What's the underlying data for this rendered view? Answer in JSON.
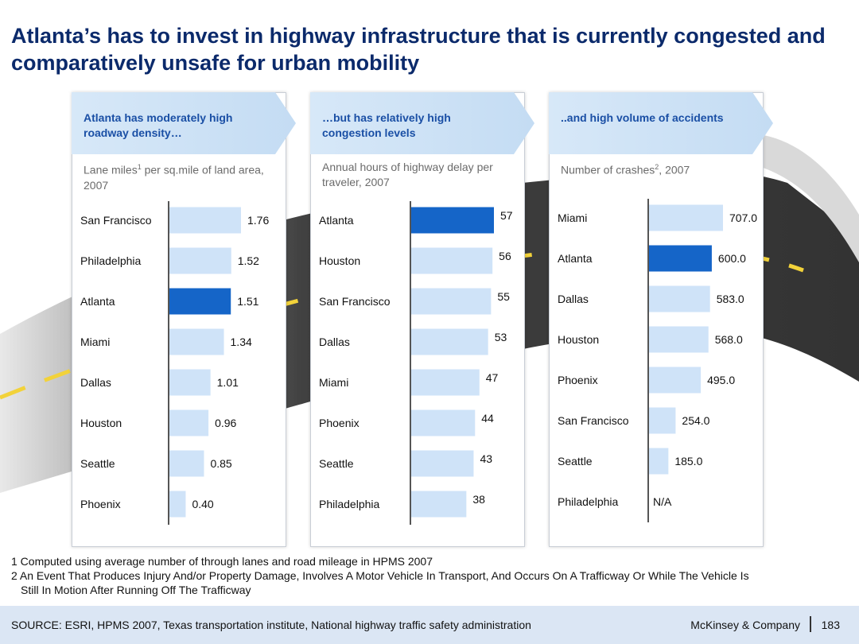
{
  "title": "Atlanta’s has to invest in highway infrastructure that is currently congested and comparatively unsafe for urban mobility",
  "colors": {
    "highlight": "#1565c8",
    "bar": "#cfe3f8",
    "axis": "#555555",
    "header": "#1a4fa5"
  },
  "panels": [
    {
      "header": "Atlanta has moderately high roadway density…",
      "subtitle_a": "Lane miles",
      "subtitle_sup": "1",
      "subtitle_b": " per sq.mile of land area, 2007"
    },
    {
      "header": "…but has relatively high congestion levels",
      "subtitle_a": "Annual hours of highway delay per traveler, 2007",
      "subtitle_sup": "",
      "subtitle_b": ""
    },
    {
      "header": "..and high volume of accidents",
      "subtitle_a": "Number of crashes",
      "subtitle_sup": "2",
      "subtitle_b": ", 2007"
    }
  ],
  "chart_data": [
    {
      "type": "bar",
      "orientation": "horizontal",
      "title": "Lane miles per sq.mile of land area, 2007",
      "categories": [
        "San Francisco",
        "Philadelphia",
        "Atlanta",
        "Miami",
        "Dallas",
        "Houston",
        "Seattle",
        "Phoenix"
      ],
      "values": [
        1.76,
        1.52,
        1.51,
        1.34,
        1.01,
        0.96,
        0.85,
        0.4
      ],
      "labels": [
        "1.76",
        "1.52",
        "1.51",
        "1.34",
        "1.01",
        "0.96",
        "0.85",
        "0.40"
      ],
      "highlight": "Atlanta",
      "xlim": [
        0,
        1.95
      ]
    },
    {
      "type": "bar",
      "orientation": "horizontal",
      "title": "Annual hours of highway delay per traveler, 2007",
      "categories": [
        "Atlanta",
        "Houston",
        "San Francisco",
        "Dallas",
        "Miami",
        "Phoenix",
        "Seattle",
        "Philadelphia"
      ],
      "values": [
        57,
        56,
        55,
        53,
        47,
        44,
        43,
        38
      ],
      "labels": [
        "57",
        "56",
        "55",
        "53",
        "47",
        "44",
        "43",
        "38"
      ],
      "highlight": "Atlanta",
      "xlim": [
        0,
        59
      ]
    },
    {
      "type": "bar",
      "orientation": "horizontal",
      "title": "Number of crashes, 2007",
      "categories": [
        "Miami",
        "Atlanta",
        "Dallas",
        "Houston",
        "Phoenix",
        "San Francisco",
        "Seattle",
        "Philadelphia"
      ],
      "values": [
        707.0,
        600.0,
        583.0,
        568.0,
        495.0,
        254.0,
        185.0,
        null
      ],
      "labels": [
        "707.0",
        "600.0",
        "583.0",
        "568.0",
        "495.0",
        "254.0",
        "185.0",
        "N/A"
      ],
      "highlight": "Atlanta",
      "xlim": [
        0,
        770
      ]
    }
  ],
  "footnotes": {
    "note1": "1 Computed using average number of through lanes and road mileage in HPMS 2007",
    "note2a": "2 An Event That Produces Injury And/or Property Damage, Involves A Motor Vehicle In Transport, And Occurs On A Trafficway Or While The Vehicle Is",
    "note2b": "Still In Motion After Running Off The Trafficway"
  },
  "footer": {
    "source": "SOURCE: ESRI, HPMS 2007, Texas transportation institute, National highway traffic safety administration",
    "company": "McKinsey & Company",
    "page": "183"
  }
}
